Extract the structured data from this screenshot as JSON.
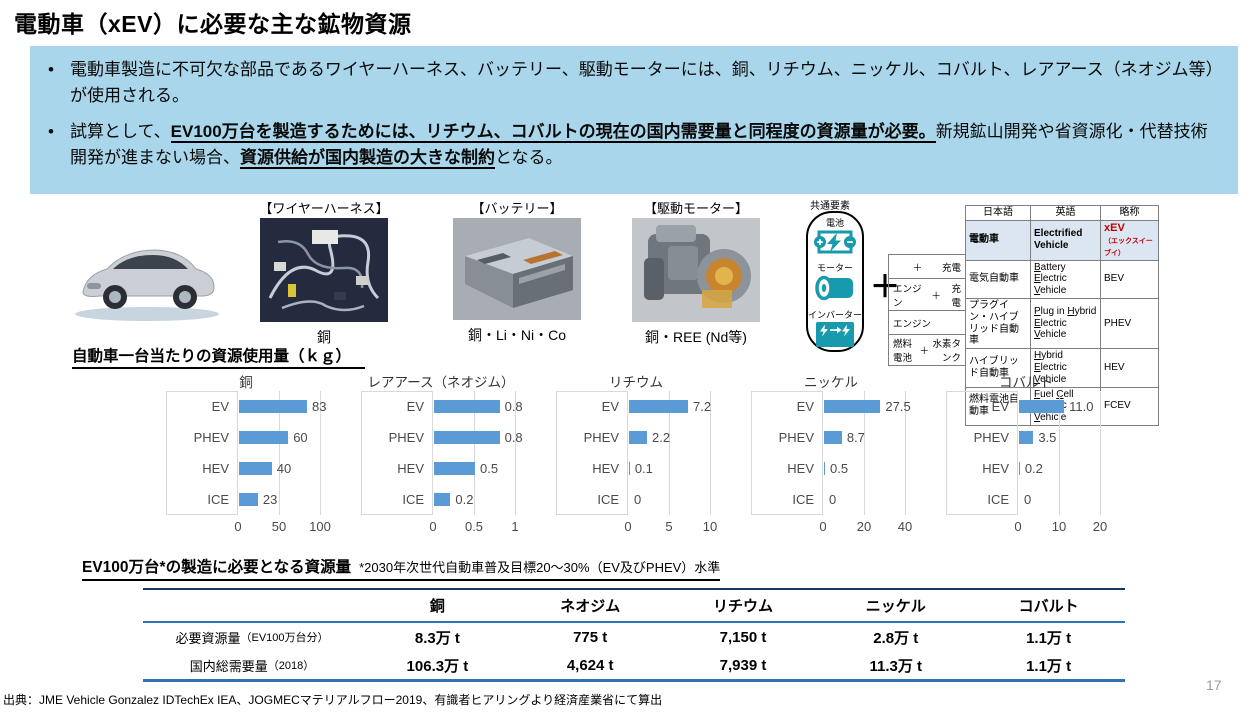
{
  "page": {
    "title": "電動車（xEV）に必要な主な鉱物資源",
    "page_number": "17",
    "source": "出典：JME Vehicle Gonzalez IDTechEx IEA、JOGMECマテリアルフロー2019、有識者ヒアリングより経済産業省にて算出"
  },
  "summary_box": {
    "bullets": [
      {
        "segments": [
          {
            "t": "電動車製造に不可欠な部品であるワイヤーハーネス、バッテリー、駆動モーターには、銅、リチウム、ニッケル、コバルト、レアアース（ネオジム等）が使用される。",
            "em": false
          }
        ]
      },
      {
        "segments": [
          {
            "t": "試算として、",
            "em": false
          },
          {
            "t": "EV100万台を製造するためには、リチウム、コバルトの現在の国内需要量と同程度の資源量が必要。",
            "em": true
          },
          {
            "t": "新規鉱山開発や省資源化・代替技術開発が進まない場合、",
            "em": false
          },
          {
            "t": "資源供給が国内製造の大きな制約",
            "em": true
          },
          {
            "t": "となる。",
            "em": false
          }
        ]
      }
    ]
  },
  "components": {
    "items": [
      {
        "image": "car-photo",
        "label": "",
        "caption": ""
      },
      {
        "image": "wire-harness-photo",
        "label": "【ワイヤーハーネス】",
        "caption": "銅"
      },
      {
        "image": "battery-photo",
        "label": "【バッテリー】",
        "caption": "銅・Li・Ni・Co"
      },
      {
        "image": "motor-photo",
        "label": "【駆動モーター】",
        "caption": "銅・REE (Nd等)"
      }
    ]
  },
  "common_elements": {
    "title": "共通要素",
    "plus": "＋",
    "items": [
      {
        "label": "電池",
        "icon": "battery-icon"
      },
      {
        "label": "モーター",
        "icon": "motor-icon"
      },
      {
        "label": "インバーター",
        "icon": "inverter-icon"
      }
    ]
  },
  "xev_table": {
    "headers": [
      "日本語",
      "英語",
      "略称"
    ],
    "top_row": {
      "jp": "電動車",
      "en": "Electrified Vehicle",
      "abbr": "xEV",
      "abbr_note": "（エックスイーブイ）"
    },
    "rows": [
      {
        "cond_left": "",
        "cond_plus": "＋",
        "cond_right": "充電",
        "jp": "電気自動車",
        "en": "[B]attery [E]lectric [V]ehicle",
        "abbr": "BEV"
      },
      {
        "cond_left": "エンジン",
        "cond_plus": "＋",
        "cond_right": "充電",
        "jp": "プラグイン・ハイブリッド自動車",
        "en": "[P]lug in [H]ybrid [E]lectric [V]ehicle",
        "abbr": "PHEV"
      },
      {
        "cond_left": "エンジン",
        "cond_plus": "",
        "cond_right": "",
        "jp": "ハイブリッド自動車",
        "en": "[H]ybrid [E]lectric [V]ehicle",
        "abbr": "HEV"
      },
      {
        "cond_left": "燃料電池",
        "cond_plus": "＋",
        "cond_right": "水素タンク",
        "jp": "燃料電池自動車",
        "en": "[F]uel [C]ell [E]lectric [V]ehicle",
        "abbr": "FCEV"
      }
    ]
  },
  "charts": {
    "heading": "自動車一台当たりの資源使用量（ｋｇ）"
  },
  "chart_data": [
    {
      "type": "bar",
      "orientation": "horizontal",
      "title": "銅",
      "unit": "kg",
      "categories": [
        "EV",
        "PHEV",
        "HEV",
        "ICE"
      ],
      "values": [
        83,
        60,
        40,
        23
      ],
      "value_labels": [
        "83",
        "60",
        "40",
        "23"
      ],
      "xlim": [
        0,
        100
      ],
      "ticks": [
        "0",
        "50",
        "100"
      ],
      "grid": true,
      "bar_color": "#5B9BD5"
    },
    {
      "type": "bar",
      "orientation": "horizontal",
      "title": "レアアース（ネオジム）",
      "unit": "kg",
      "categories": [
        "EV",
        "PHEV",
        "HEV",
        "ICE"
      ],
      "values": [
        0.8,
        0.8,
        0.5,
        0.2
      ],
      "value_labels": [
        "0.8",
        "0.8",
        "0.5",
        "0.2"
      ],
      "xlim": [
        0,
        1
      ],
      "ticks": [
        "0",
        "0.5",
        "1"
      ],
      "grid": true,
      "bar_color": "#5B9BD5"
    },
    {
      "type": "bar",
      "orientation": "horizontal",
      "title": "リチウム",
      "unit": "kg",
      "categories": [
        "EV",
        "PHEV",
        "HEV",
        "ICE"
      ],
      "values": [
        7.2,
        2.2,
        0.1,
        0
      ],
      "value_labels": [
        "7.2",
        "2.2",
        "0.1",
        "0"
      ],
      "xlim": [
        0,
        10
      ],
      "ticks": [
        "0",
        "5",
        "10"
      ],
      "grid": true,
      "bar_color": "#5B9BD5"
    },
    {
      "type": "bar",
      "orientation": "horizontal",
      "title": "ニッケル",
      "unit": "kg",
      "categories": [
        "EV",
        "PHEV",
        "HEV",
        "ICE"
      ],
      "values": [
        27.5,
        8.7,
        0.5,
        0
      ],
      "value_labels": [
        "27.5",
        "8.7",
        "0.5",
        "0"
      ],
      "xlim": [
        0,
        40
      ],
      "ticks": [
        "0",
        "20",
        "40"
      ],
      "grid": true,
      "bar_color": "#5B9BD5"
    },
    {
      "type": "bar",
      "orientation": "horizontal",
      "title": "コバルト",
      "unit": "kg",
      "categories": [
        "EV",
        "PHEV",
        "HEV",
        "ICE"
      ],
      "values": [
        11.0,
        3.5,
        0.2,
        0
      ],
      "value_labels": [
        "11.0",
        "3.5",
        "0.2",
        "0"
      ],
      "xlim": [
        0,
        20
      ],
      "ticks": [
        "0",
        "10",
        "20"
      ],
      "grid": true,
      "bar_color": "#5B9BD5"
    }
  ],
  "resource_table": {
    "heading": "EV100万台*の製造に必要となる資源量",
    "note": "*2030年次世代自動車普及目標20～30%（EV及びPHEV）水準",
    "columns": [
      "銅",
      "ネオジム",
      "リチウム",
      "ニッケル",
      "コバルト"
    ],
    "rows": [
      {
        "label": "必要資源量",
        "label_note": "（EV100万台分）",
        "values": [
          "8.3万 t",
          "775 t",
          "7,150 t",
          "2.8万 t",
          "1.1万 t"
        ]
      },
      {
        "label": "国内総需要量",
        "label_note": "（2018）",
        "values": [
          "106.3万 t",
          "4,624 t",
          "7,939 t",
          "11.3万 t",
          "1.1万 t"
        ]
      }
    ]
  },
  "colors": {
    "highlight_box": "#A9D6EA",
    "bar_blue": "#5B9BD5",
    "icon_teal": "#1799AE",
    "xev_red": "#C00000",
    "table_row_highlight": "#DCE6F2",
    "table_line_blue": "#2E74B5",
    "table_line_dark": "#17365D",
    "chart_grid": "#D9D9D9"
  }
}
